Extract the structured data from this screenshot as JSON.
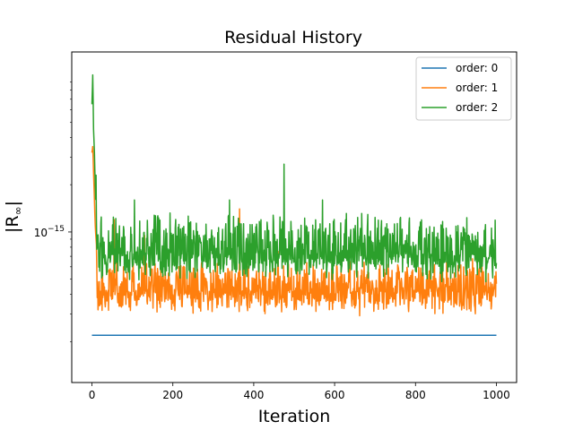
{
  "chart_data": {
    "type": "line",
    "title": "Residual History",
    "xlabel": "Iteration",
    "ylabel": "|R∞|",
    "ylabel_main": "|R",
    "ylabel_sub": "∞",
    "ylabel_tail": "|",
    "y_scale": "log",
    "xlim": [
      -50,
      1050
    ],
    "ylim": [
      1.1e-16,
      1.4e-14
    ],
    "x_ticks": [
      0,
      200,
      400,
      600,
      800,
      1000
    ],
    "x_tick_labels": [
      "0",
      "200",
      "400",
      "600",
      "800",
      "1000"
    ],
    "y_major_tick": 1e-15,
    "y_tick_label": {
      "base": "10",
      "exp": "−15"
    },
    "y_minor_ticks": [
      2e-16,
      3e-16,
      4e-16,
      5e-16,
      6e-16,
      7e-16,
      8e-16,
      9e-16,
      2e-15,
      3e-15,
      4e-15,
      5e-15,
      6e-15,
      7e-15,
      8e-15,
      9e-15
    ],
    "grid": false,
    "legend_position": "top-right",
    "series": [
      {
        "name": "order: 0",
        "color": "#1f77b4",
        "x": [
          0,
          1000
        ],
        "values": [
          2.2e-16,
          2.2e-16
        ]
      },
      {
        "name": "order: 1",
        "color": "#ff7f0e",
        "x": [
          0,
          2,
          4,
          6,
          8,
          10,
          15,
          20,
          30,
          50,
          100,
          200,
          400,
          600,
          800,
          1000
        ],
        "values": [
          3.2e-15,
          3.5e-15,
          2.4e-15,
          1.6e-15,
          1.1e-15,
          9e-16,
          6e-16,
          5e-16,
          4.5e-16,
          4.3e-16,
          4.2e-16,
          4.2e-16,
          4.2e-16,
          4.2e-16,
          4.2e-16,
          4.2e-16
        ],
        "noise": {
          "start": 12,
          "center": 4.2e-16,
          "min": 2.9e-16,
          "max": 6.8e-16,
          "spikes": [
            [
              55,
              1.2e-15
            ],
            [
              130,
              9.5e-16
            ],
            [
              365,
              1.4e-15
            ],
            [
              460,
              7.5e-16
            ]
          ],
          "seed": 7
        }
      },
      {
        "name": "order: 2",
        "color": "#2ca02c",
        "x": [
          0,
          2,
          4,
          6,
          8,
          10,
          15,
          20,
          30,
          50,
          100,
          200,
          400,
          600,
          800,
          1000
        ],
        "values": [
          6.5e-15,
          1e-14,
          4.5e-15,
          3.2e-15,
          2e-15,
          1.3e-15,
          9e-16,
          7.5e-16,
          7e-16,
          7e-16,
          7e-16,
          7e-16,
          7e-16,
          7e-16,
          7e-16,
          7e-16
        ],
        "noise": {
          "start": 12,
          "center": 7.2e-16,
          "min": 4.7e-16,
          "max": 1.35e-15,
          "spikes": [
            [
              10,
              2.3e-15
            ],
            [
              475,
              2.7e-15
            ],
            [
              105,
              1.6e-15
            ],
            [
              340,
              1.6e-15
            ],
            [
              570,
              1.6e-15
            ]
          ],
          "seed": 3
        }
      }
    ]
  }
}
